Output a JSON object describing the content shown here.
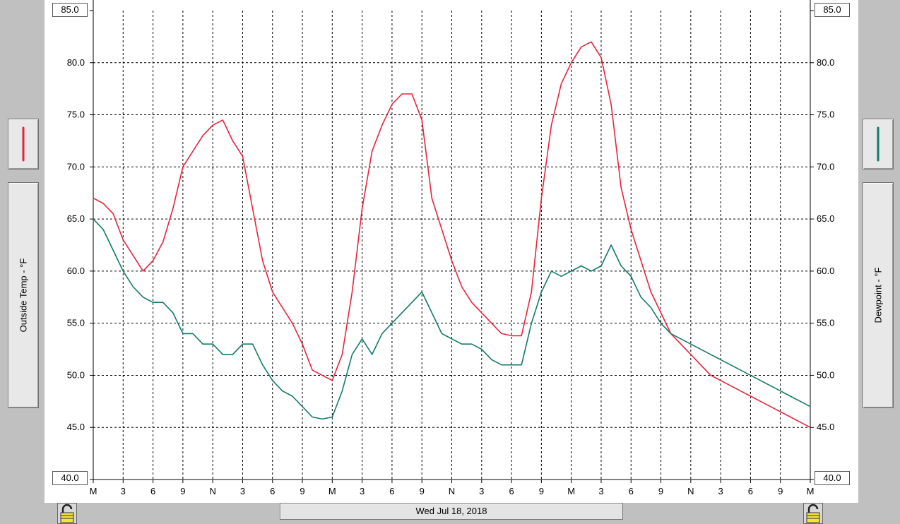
{
  "chart_data": {
    "type": "line",
    "date_label": "Wed Jul 18, 2018",
    "x_tick_labels": [
      "M",
      "3",
      "6",
      "9",
      "N",
      "3",
      "6",
      "9",
      "M",
      "3",
      "6",
      "9",
      "N",
      "3",
      "6",
      "9",
      "M",
      "3",
      "6",
      "9",
      "N",
      "3",
      "6",
      "9",
      "M"
    ],
    "x_hours_range": [
      0,
      72
    ],
    "y_left": {
      "label": "Outside Temp - °F",
      "min": 40.0,
      "max": 85.0,
      "ticks": [
        "40.0",
        "45.0",
        "50.0",
        "55.0",
        "60.0",
        "65.0",
        "70.0",
        "75.0",
        "80.0",
        "85.0"
      ]
    },
    "y_right": {
      "label": "Dewpoint - °F",
      "min": 40.0,
      "max": 85.0,
      "ticks": [
        "40.0",
        "45.0",
        "50.0",
        "55.0",
        "60.0",
        "65.0",
        "70.0",
        "75.0",
        "80.0",
        "85.0"
      ]
    },
    "grid": true,
    "series": [
      {
        "color": "#e8243c",
        "x": [
          0,
          1,
          2,
          3,
          4,
          5,
          6,
          7,
          8,
          9,
          10,
          11,
          12,
          13,
          14,
          15,
          16,
          17,
          18,
          19,
          20,
          21,
          22,
          23,
          24,
          25,
          26,
          27,
          28,
          29,
          30,
          31,
          32,
          33,
          34,
          35,
          36,
          37,
          38,
          39,
          40,
          41,
          42,
          43,
          44,
          45,
          46,
          47,
          48,
          49,
          50,
          51,
          52,
          53,
          54,
          55,
          56,
          57,
          58,
          59,
          60,
          61,
          62,
          63,
          64,
          65,
          66,
          67,
          68,
          69,
          70,
          71,
          72
        ],
        "y": [
          67.0,
          66.5,
          65.5,
          63.0,
          61.5,
          60.0,
          61.0,
          62.8,
          66.0,
          70.0,
          71.5,
          73.0,
          74.0,
          74.5,
          72.5,
          71.0,
          66.0,
          61.0,
          58.0,
          56.5,
          55.0,
          53.0,
          50.5,
          50.0,
          49.5,
          52.0,
          58.0,
          66.0,
          71.5,
          74.0,
          76.0,
          77.0,
          77.0,
          74.5,
          67.0,
          64.0,
          61.0,
          58.5,
          57.0,
          56.0,
          55.0,
          54.0,
          53.8,
          53.8,
          58.0,
          67.0,
          74.0,
          78.0,
          80.0,
          81.5,
          82.0,
          80.5,
          76.0,
          68.0,
          64.0,
          61.0,
          58.0,
          56.0,
          54.0,
          53.0,
          52.0,
          51.0,
          50.0,
          49.5,
          49.0,
          48.5,
          48.0,
          47.5,
          47.0,
          46.5,
          46.0,
          45.5,
          45.0
        ]
      },
      {
        "color": "#137a6a",
        "x": [
          0,
          1,
          2,
          3,
          4,
          5,
          6,
          7,
          8,
          9,
          10,
          11,
          12,
          13,
          14,
          15,
          16,
          17,
          18,
          19,
          20,
          21,
          22,
          23,
          24,
          25,
          26,
          27,
          28,
          29,
          30,
          31,
          32,
          33,
          34,
          35,
          36,
          37,
          38,
          39,
          40,
          41,
          42,
          43,
          44,
          45,
          46,
          47,
          48,
          49,
          50,
          51,
          52,
          53,
          54,
          55,
          56,
          57,
          58,
          59,
          60,
          61,
          62,
          63,
          64,
          65,
          66,
          67,
          68,
          69,
          70,
          71,
          72
        ],
        "y": [
          65.0,
          64.0,
          62.0,
          60.0,
          58.5,
          57.5,
          57.0,
          57.0,
          56.0,
          54.0,
          54.0,
          53.0,
          53.0,
          52.0,
          52.0,
          53.0,
          53.0,
          51.0,
          49.5,
          48.5,
          48.0,
          47.0,
          46.0,
          45.8,
          46.0,
          48.5,
          52.0,
          53.5,
          52.0,
          54.0,
          55.0,
          56.0,
          57.0,
          58.0,
          56.0,
          54.0,
          53.5,
          53.0,
          53.0,
          52.5,
          51.5,
          51.0,
          51.0,
          51.0,
          55.0,
          58.0,
          60.0,
          59.5,
          60.0,
          60.5,
          60.0,
          60.5,
          62.5,
          60.5,
          59.5,
          57.5,
          56.5,
          55.0,
          54.0,
          53.5,
          53.0,
          52.5,
          52.0,
          51.5,
          51.0,
          50.5,
          50.0,
          49.5,
          49.0,
          48.5,
          48.0,
          47.5,
          47.0
        ]
      }
    ]
  },
  "left_axis_label": "Outside Temp - °F",
  "right_axis_label": "Dewpoint - °F",
  "left_axis_top": "85.0",
  "left_axis_bottom": "40.0",
  "right_axis_top": "85.0",
  "right_axis_bottom": "40.0",
  "date_label": "Wed Jul 18, 2018",
  "colors": {
    "temp": "#e8243c",
    "dewpoint": "#137a6a",
    "background": "#c0c0c0"
  },
  "icons": {
    "left_lock": "unlocked-padlock-icon",
    "right_lock": "unlocked-padlock-icon"
  }
}
